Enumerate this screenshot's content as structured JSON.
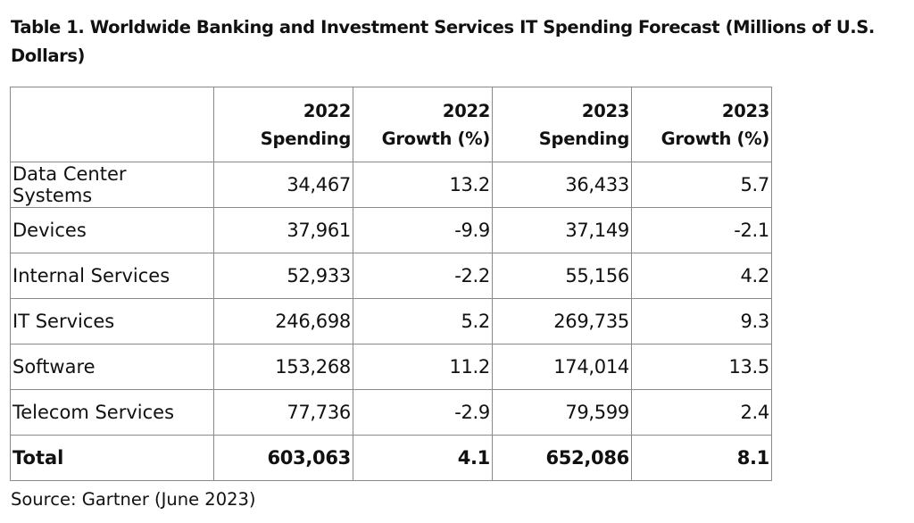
{
  "title": "Table 1. Worldwide Banking and Investment Services IT Spending Forecast (Millions of U.S. Dollars)",
  "table": {
    "columns": [
      {
        "line1": "",
        "line2": ""
      },
      {
        "line1": "2022",
        "line2": "Spending"
      },
      {
        "line1": "2022",
        "line2": "Growth (%)"
      },
      {
        "line1": "2023",
        "line2": "Spending"
      },
      {
        "line1": "2023",
        "line2": "Growth (%)"
      }
    ],
    "rows": [
      [
        "Data Center Systems",
        "34,467",
        "13.2",
        "36,433",
        "5.7"
      ],
      [
        "Devices",
        "37,961",
        "-9.9",
        "37,149",
        "-2.1"
      ],
      [
        "Internal Services",
        "52,933",
        "-2.2",
        "55,156",
        "4.2"
      ],
      [
        "IT Services",
        "246,698",
        "5.2",
        "269,735",
        "9.3"
      ],
      [
        "Software",
        "153,268",
        "11.2",
        "174,014",
        "13.5"
      ],
      [
        "Telecom Services",
        "77,736",
        "-2.9",
        "79,599",
        "2.4"
      ]
    ],
    "total": [
      "Total",
      "603,063",
      "4.1",
      "652,086",
      "8.1"
    ]
  },
  "source": "Source: Gartner (June 2023)"
}
